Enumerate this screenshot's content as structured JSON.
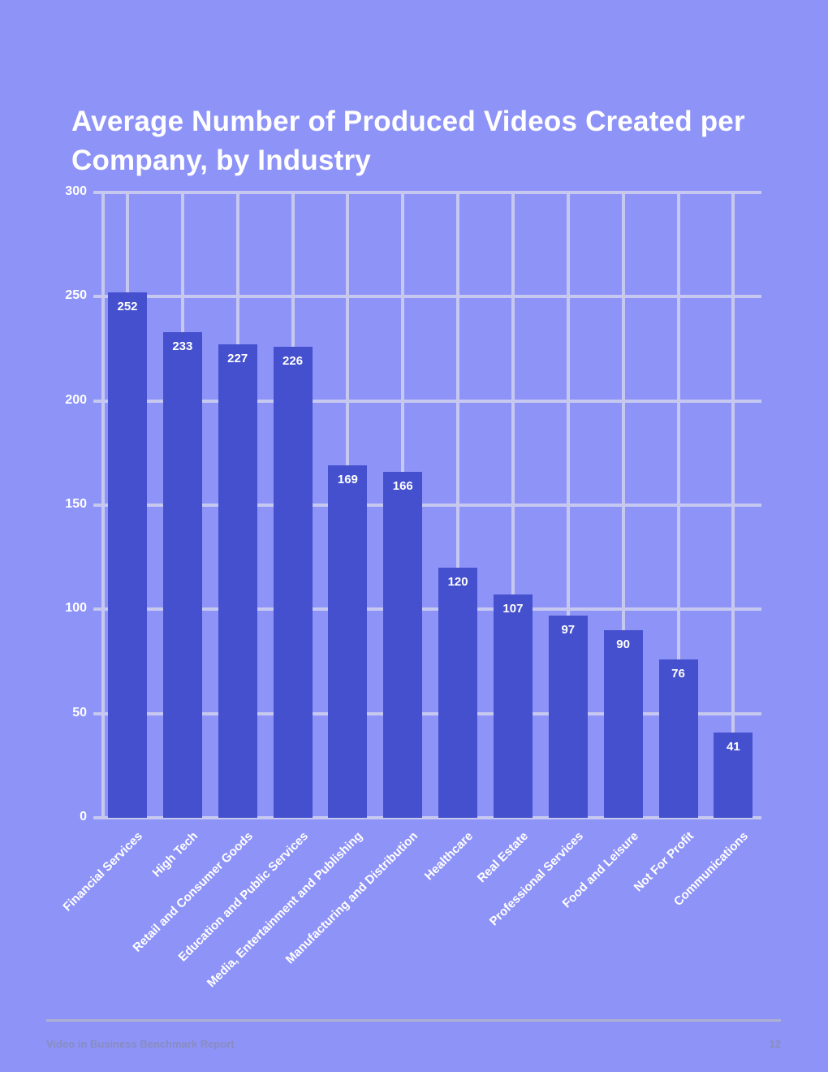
{
  "page": {
    "title": "Average Number of Produced Videos Created per Company, by Industry",
    "footer": {
      "report_name": "Video in Business Benchmark Report",
      "page_number": "12"
    }
  },
  "chart_data": {
    "type": "bar",
    "title": "Average Number of Produced Videos Created per Company, by Industry",
    "categories": [
      "Financial Services",
      "High Tech",
      "Retail and Consumer Goods",
      "Education and Public Services",
      "Media, Entertainment and Publishing",
      "Manufacturing and Distribution",
      "Healthcare",
      "Real Estate",
      "Professional Services",
      "Food and Leisure",
      "Not For Profit",
      "Communications"
    ],
    "values": [
      252,
      233,
      227,
      226,
      169,
      166,
      120,
      107,
      97,
      90,
      76,
      41
    ],
    "xlabel": "",
    "ylabel": "",
    "ylim": [
      0,
      300
    ],
    "yticks": [
      0,
      50,
      100,
      150,
      200,
      250,
      300
    ],
    "grid": true,
    "legend": "none",
    "bar_value_labels": true,
    "colors": {
      "background": "#8e93f7",
      "bar": "#4450ce",
      "gridline": "#c6c8f0",
      "chart_text": "#ffffff",
      "footer_text": "#888cc0",
      "divider": "#aeb0d2"
    }
  }
}
